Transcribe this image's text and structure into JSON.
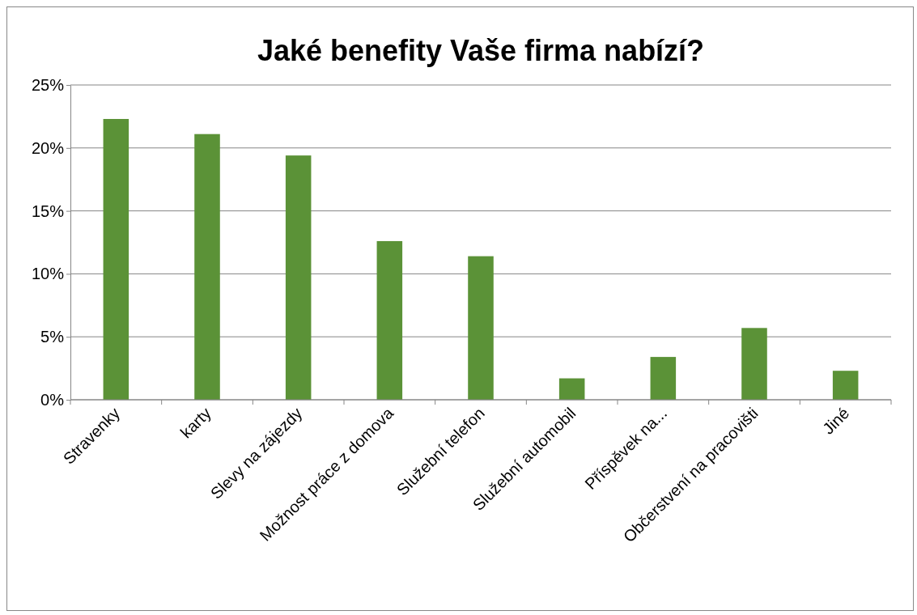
{
  "chart_data": {
    "type": "bar",
    "title": "Jaké benefity Vaše firma nabízí?",
    "categories": [
      "Stravenky",
      "karty",
      "Slevy na zájezdy",
      "Možnost práce z domova",
      "Služební telefon",
      "Služební automobil",
      "Příspěvek na...",
      "Občerstvení na pracovišti",
      "Jiné"
    ],
    "values": [
      22.3,
      21.1,
      19.4,
      12.6,
      11.4,
      1.7,
      3.4,
      5.7,
      2.3
    ],
    "color": "#5b9237",
    "ylim": [
      0,
      25
    ],
    "yticks": [
      {
        "value": 0,
        "label": "0%"
      },
      {
        "value": 5,
        "label": "5%"
      },
      {
        "value": 10,
        "label": "10%"
      },
      {
        "value": 15,
        "label": "15%"
      },
      {
        "value": 20,
        "label": "20%"
      },
      {
        "value": 25,
        "label": "25%"
      }
    ],
    "grid": "y"
  }
}
